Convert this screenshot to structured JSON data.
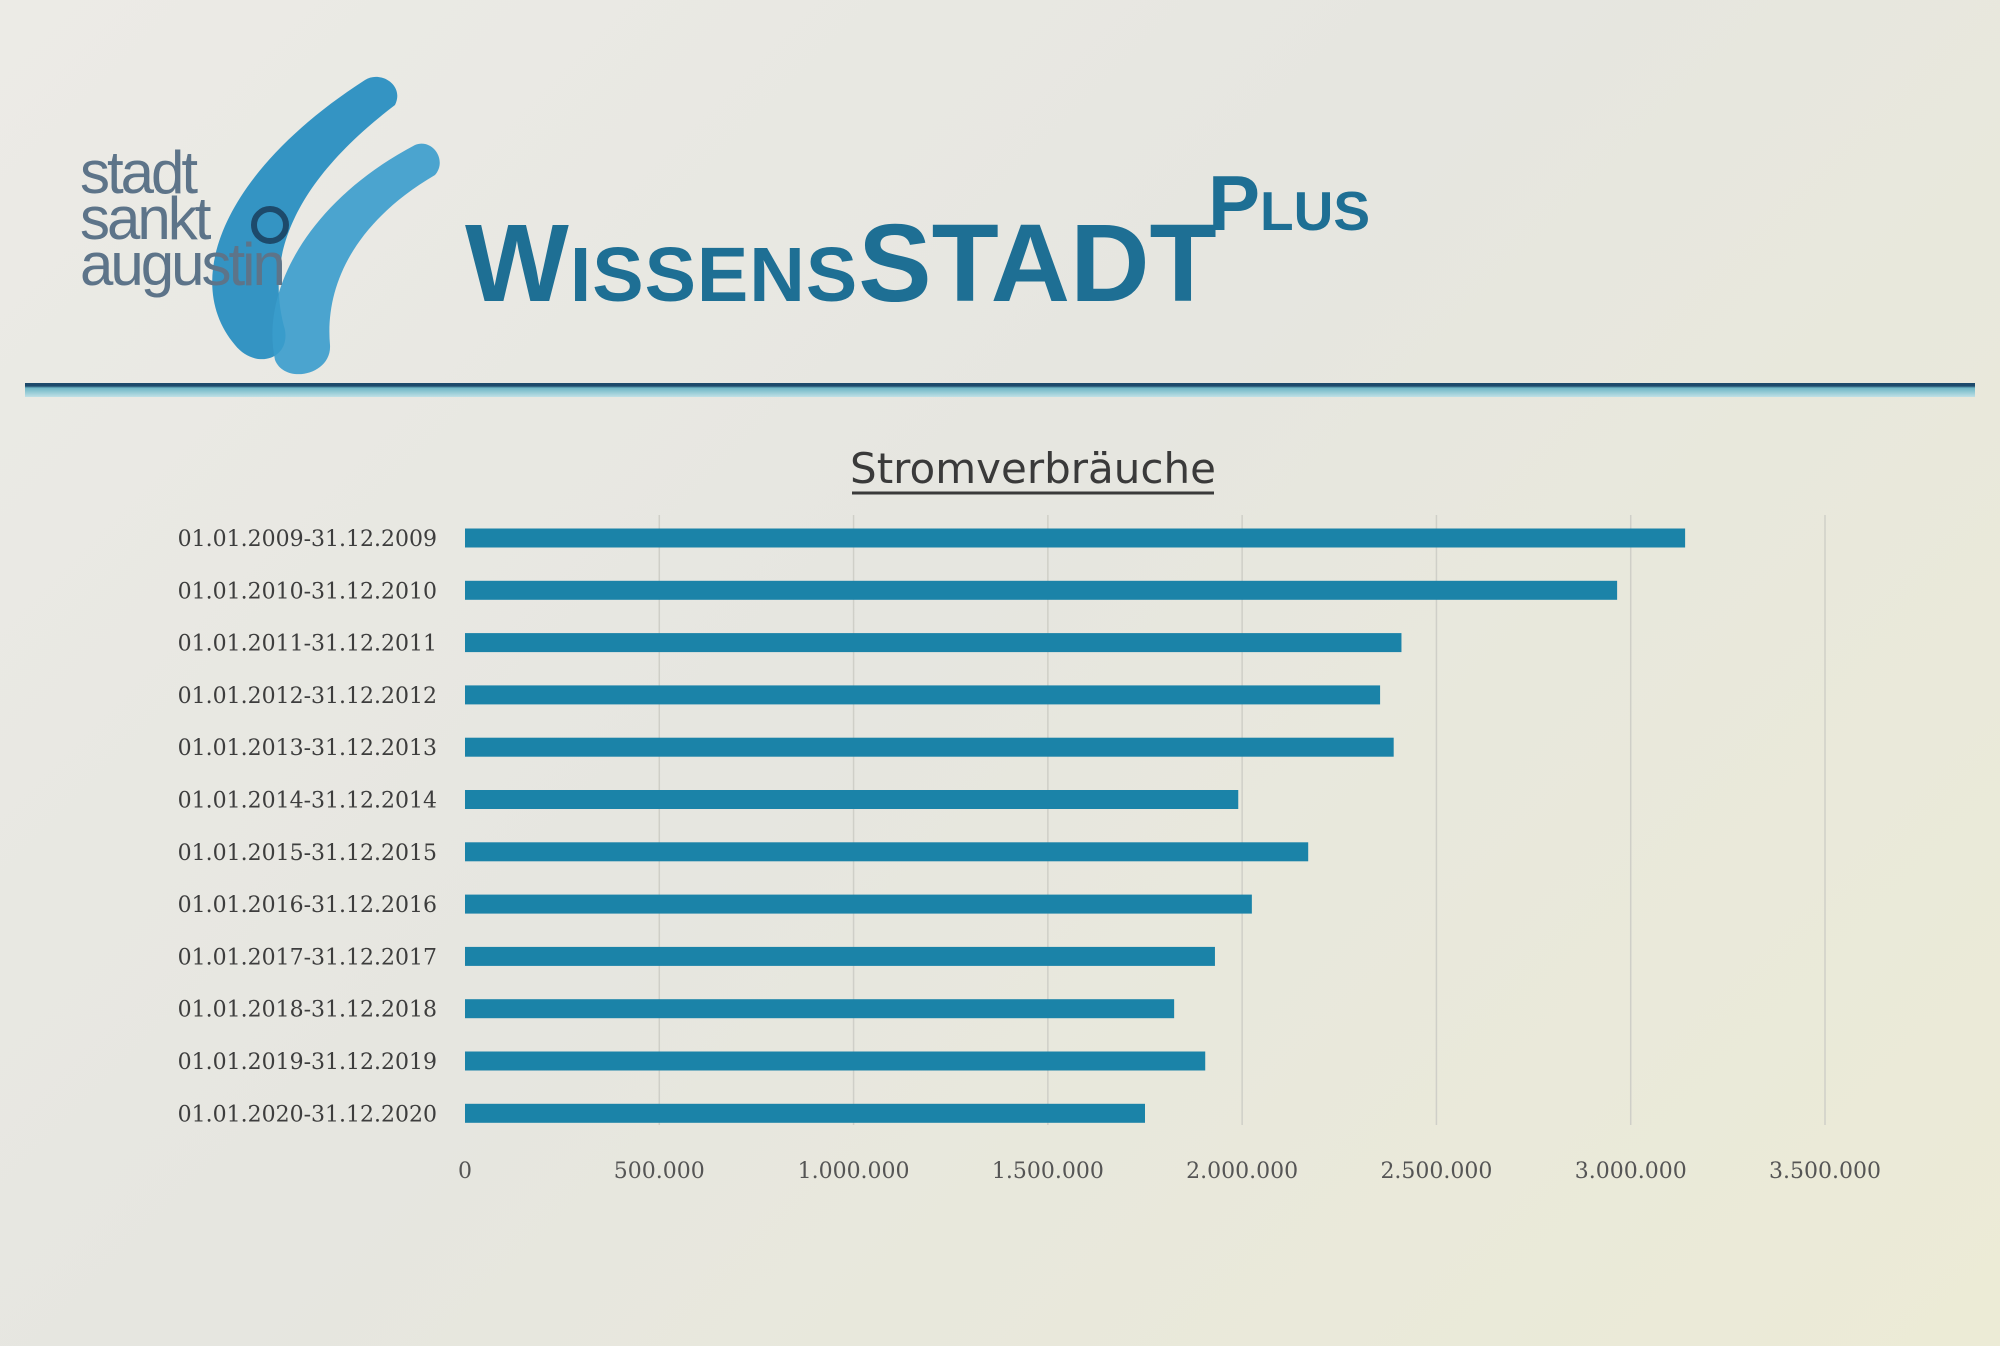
{
  "header": {
    "logo_lines": [
      "stadt",
      "sankt",
      "augustin"
    ],
    "brand_wissens": "Wissens",
    "brand_stadt": "STADT",
    "brand_plus": "Plus"
  },
  "colors": {
    "bar": "#1b83a8",
    "brand": "#1e6f94",
    "logo_swoosh": "#2a8fc1",
    "rule": "#1d4a6b"
  },
  "chart_data": {
    "type": "bar",
    "orientation": "horizontal",
    "title": "Stromverbräuche",
    "categories": [
      "01.01.2009-31.12.2009",
      "01.01.2010-31.12.2010",
      "01.01.2011-31.12.2011",
      "01.01.2012-31.12.2012",
      "01.01.2013-31.12.2013",
      "01.01.2014-31.12.2014",
      "01.01.2015-31.12.2015",
      "01.01.2016-31.12.2016",
      "01.01.2017-31.12.2017",
      "01.01.2018-31.12.2018",
      "01.01.2019-31.12.2019",
      "01.01.2020-31.12.2020"
    ],
    "values": [
      3140000,
      2965000,
      2410000,
      2355000,
      2390000,
      1990000,
      2170000,
      2025000,
      1930000,
      1825000,
      1905000,
      1750000
    ],
    "xlim": [
      0,
      3500000
    ],
    "xticks": [
      0,
      500000,
      1000000,
      1500000,
      2000000,
      2500000,
      3000000,
      3500000
    ],
    "xtick_labels": [
      "0",
      "500.000",
      "1.000.000",
      "1.500.000",
      "2.000.000",
      "2.500.000",
      "3.000.000",
      "3.500.000"
    ],
    "grid": "vertical",
    "legend": "none"
  }
}
